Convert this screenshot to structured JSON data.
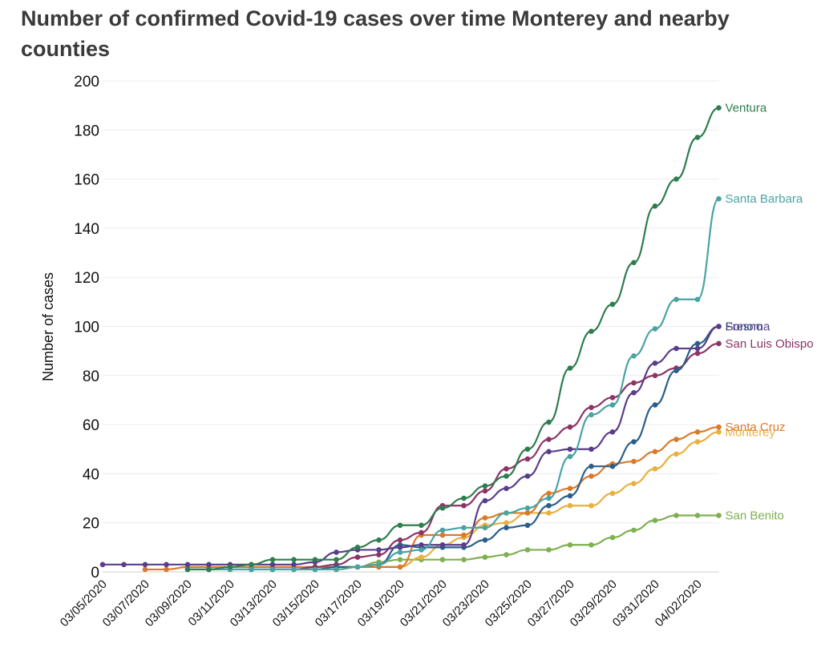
{
  "chart_data": {
    "type": "line",
    "title": "Number of confirmed Covid-19 cases over time Monterey and nearby counties",
    "ylabel": "Number of cases",
    "xlabel": "",
    "ylim": [
      0,
      200
    ],
    "yticks": [
      0,
      20,
      40,
      60,
      80,
      100,
      120,
      140,
      160,
      180,
      200
    ],
    "grid": true,
    "legend": "end-of-line labels",
    "x": [
      "03/05/2020",
      "03/06/2020",
      "03/07/2020",
      "03/08/2020",
      "03/09/2020",
      "03/10/2020",
      "03/11/2020",
      "03/12/2020",
      "03/13/2020",
      "03/14/2020",
      "03/15/2020",
      "03/16/2020",
      "03/17/2020",
      "03/18/2020",
      "03/19/2020",
      "03/20/2020",
      "03/21/2020",
      "03/22/2020",
      "03/23/2020",
      "03/24/2020",
      "03/25/2020",
      "03/26/2020",
      "03/27/2020",
      "03/28/2020",
      "03/29/2020",
      "03/30/2020",
      "03/31/2020",
      "04/01/2020",
      "04/02/2020",
      "04/03/2020"
    ],
    "xtick_labels": [
      "03/05/2020",
      "03/07/2020",
      "03/09/2020",
      "03/11/2020",
      "03/13/2020",
      "03/15/2020",
      "03/17/2020",
      "03/19/2020",
      "03/21/2020",
      "03/23/2020",
      "03/25/2020",
      "03/27/2020",
      "03/29/2020",
      "03/31/2020",
      "04/02/2020"
    ],
    "series": [
      {
        "name": "Ventura",
        "color": "#2e7d4f",
        "values": [
          null,
          null,
          null,
          null,
          1,
          1,
          2,
          3,
          5,
          5,
          5,
          5,
          10,
          13,
          19,
          19,
          26,
          30,
          35,
          39,
          50,
          61,
          83,
          98,
          109,
          126,
          149,
          160,
          177,
          189
        ]
      },
      {
        "name": "Santa Barbara",
        "color": "#4aa3a3",
        "values": [
          null,
          null,
          null,
          null,
          1,
          1,
          1,
          1,
          1,
          1,
          1,
          1,
          2,
          3,
          8,
          9,
          17,
          18,
          18,
          24,
          26,
          30,
          47,
          64,
          68,
          88,
          99,
          111,
          111,
          152
        ]
      },
      {
        "name": "Fresno",
        "color": "#2b5f8a",
        "values": [
          null,
          null,
          null,
          null,
          1,
          1,
          1,
          1,
          1,
          1,
          1,
          2,
          2,
          3,
          11,
          10,
          10,
          10,
          13,
          18,
          19,
          27,
          31,
          43,
          43,
          53,
          68,
          82,
          93,
          100
        ]
      },
      {
        "name": "Sonoma",
        "color": "#5a3d8a",
        "values": [
          3,
          3,
          3,
          3,
          3,
          3,
          3,
          3,
          3,
          3,
          4,
          8,
          9,
          9,
          10,
          11,
          11,
          11,
          29,
          34,
          39,
          49,
          50,
          50,
          57,
          73,
          85,
          91,
          91,
          100
        ]
      },
      {
        "name": "San Luis Obispo",
        "color": "#8c3466",
        "values": [
          null,
          null,
          null,
          null,
          null,
          null,
          null,
          null,
          1,
          1,
          2,
          3,
          6,
          7,
          13,
          16,
          27,
          27,
          33,
          42,
          46,
          54,
          59,
          67,
          71,
          77,
          80,
          83,
          89,
          93
        ]
      },
      {
        "name": "Santa Cruz",
        "color": "#d97a2b",
        "values": [
          null,
          null,
          1,
          1,
          2,
          2,
          2,
          2,
          2,
          2,
          2,
          2,
          2,
          2,
          2,
          15,
          15,
          15,
          22,
          24,
          24,
          32,
          34,
          39,
          44,
          45,
          49,
          54,
          57,
          59
        ]
      },
      {
        "name": "Monterey",
        "color": "#e8b040",
        "values": [
          null,
          null,
          null,
          null,
          null,
          null,
          1,
          1,
          1,
          1,
          1,
          1,
          2,
          2,
          2,
          6,
          11,
          14,
          19,
          20,
          24,
          24,
          27,
          27,
          32,
          36,
          42,
          48,
          53,
          57
        ]
      },
      {
        "name": "San Benito",
        "color": "#7fb04f",
        "values": [
          null,
          null,
          null,
          null,
          1,
          1,
          1,
          1,
          1,
          1,
          1,
          1,
          2,
          4,
          5,
          5,
          5,
          5,
          6,
          7,
          9,
          9,
          11,
          11,
          14,
          17,
          21,
          23,
          23,
          23
        ]
      }
    ]
  }
}
